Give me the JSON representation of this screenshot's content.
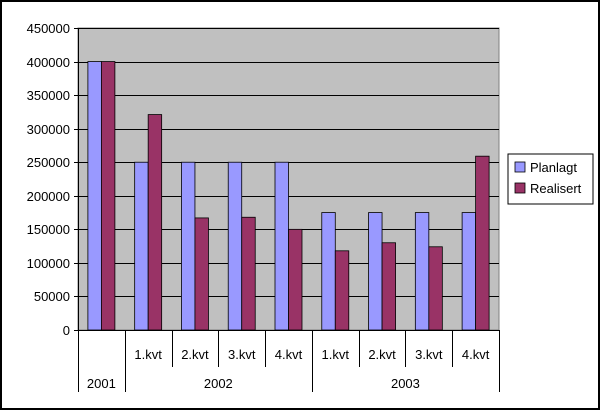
{
  "chart_data": {
    "type": "bar",
    "title": "",
    "xlabel": "",
    "ylabel": "",
    "ylim": [
      0,
      450000
    ],
    "yticks": [
      0,
      50000,
      100000,
      150000,
      200000,
      250000,
      300000,
      350000,
      400000,
      450000
    ],
    "grid": true,
    "legend_position": "right",
    "plot_background": "#c0c0c0",
    "categories": [
      "",
      "1.kvt",
      "2.kvt",
      "3.kvt",
      "4.kvt",
      "1.kvt",
      "2.kvt",
      "3.kvt",
      "4.kvt"
    ],
    "category_groups": [
      {
        "label": "2001",
        "count": 1
      },
      {
        "label": "2002",
        "count": 4
      },
      {
        "label": "2003",
        "count": 4
      }
    ],
    "series": [
      {
        "name": "Planlagt",
        "color": "#9999ff",
        "values": [
          400000,
          250000,
          250000,
          250000,
          250000,
          175000,
          175000,
          175000,
          175000
        ]
      },
      {
        "name": "Realisert",
        "color": "#993366",
        "values": [
          400000,
          321000,
          167000,
          168000,
          150000,
          118000,
          130000,
          124000,
          259000
        ]
      }
    ]
  }
}
